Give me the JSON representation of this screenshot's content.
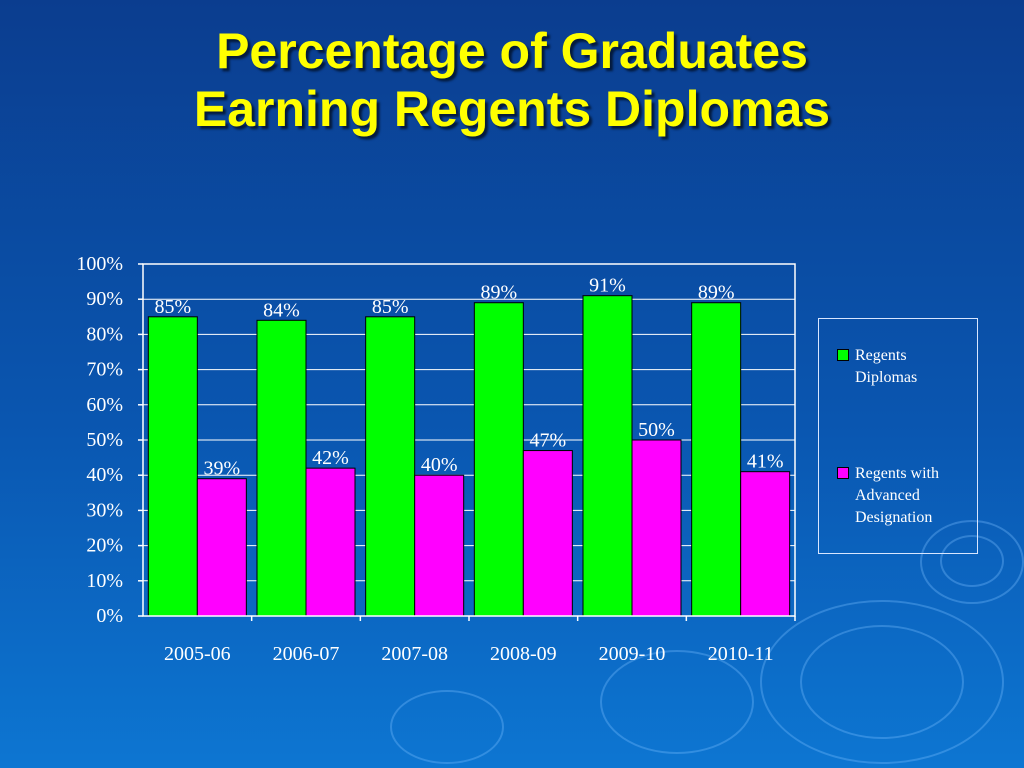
{
  "slide": {
    "title_line1": "Percentage of Graduates",
    "title_line2": "Earning Regents Diplomas"
  },
  "colors": {
    "regents": "#00ff00",
    "advanced": "#ff00ff",
    "title": "#ffff00",
    "text": "#ffffff"
  },
  "chart_data": {
    "type": "bar",
    "title": "",
    "xlabel": "",
    "ylabel": "",
    "categories": [
      "2005-06",
      "2006-07",
      "2007-08",
      "2008-09",
      "2009-10",
      "2010-11"
    ],
    "series": [
      {
        "name": "Regents Diplomas",
        "values": [
          85,
          84,
          85,
          89,
          91,
          89
        ],
        "labels": [
          "85%",
          "84%",
          "85%",
          "89%",
          "91%",
          "89%"
        ]
      },
      {
        "name": "Regents with Advanced Designation",
        "values": [
          39,
          42,
          40,
          47,
          50,
          41
        ],
        "labels": [
          "39%",
          "42%",
          "40%",
          "47%",
          "50%",
          "41%"
        ]
      }
    ],
    "ylim": [
      0,
      100
    ],
    "yticks": [
      "0%",
      "10%",
      "20%",
      "30%",
      "40%",
      "50%",
      "60%",
      "70%",
      "80%",
      "90%",
      "100%"
    ],
    "grid": true,
    "legend_position": "right"
  },
  "legend": {
    "items": [
      {
        "label_lines": [
          "Regents",
          "Diplomas"
        ]
      },
      {
        "label_lines": [
          "Regents with",
          "Advanced",
          "Designation"
        ]
      }
    ]
  }
}
